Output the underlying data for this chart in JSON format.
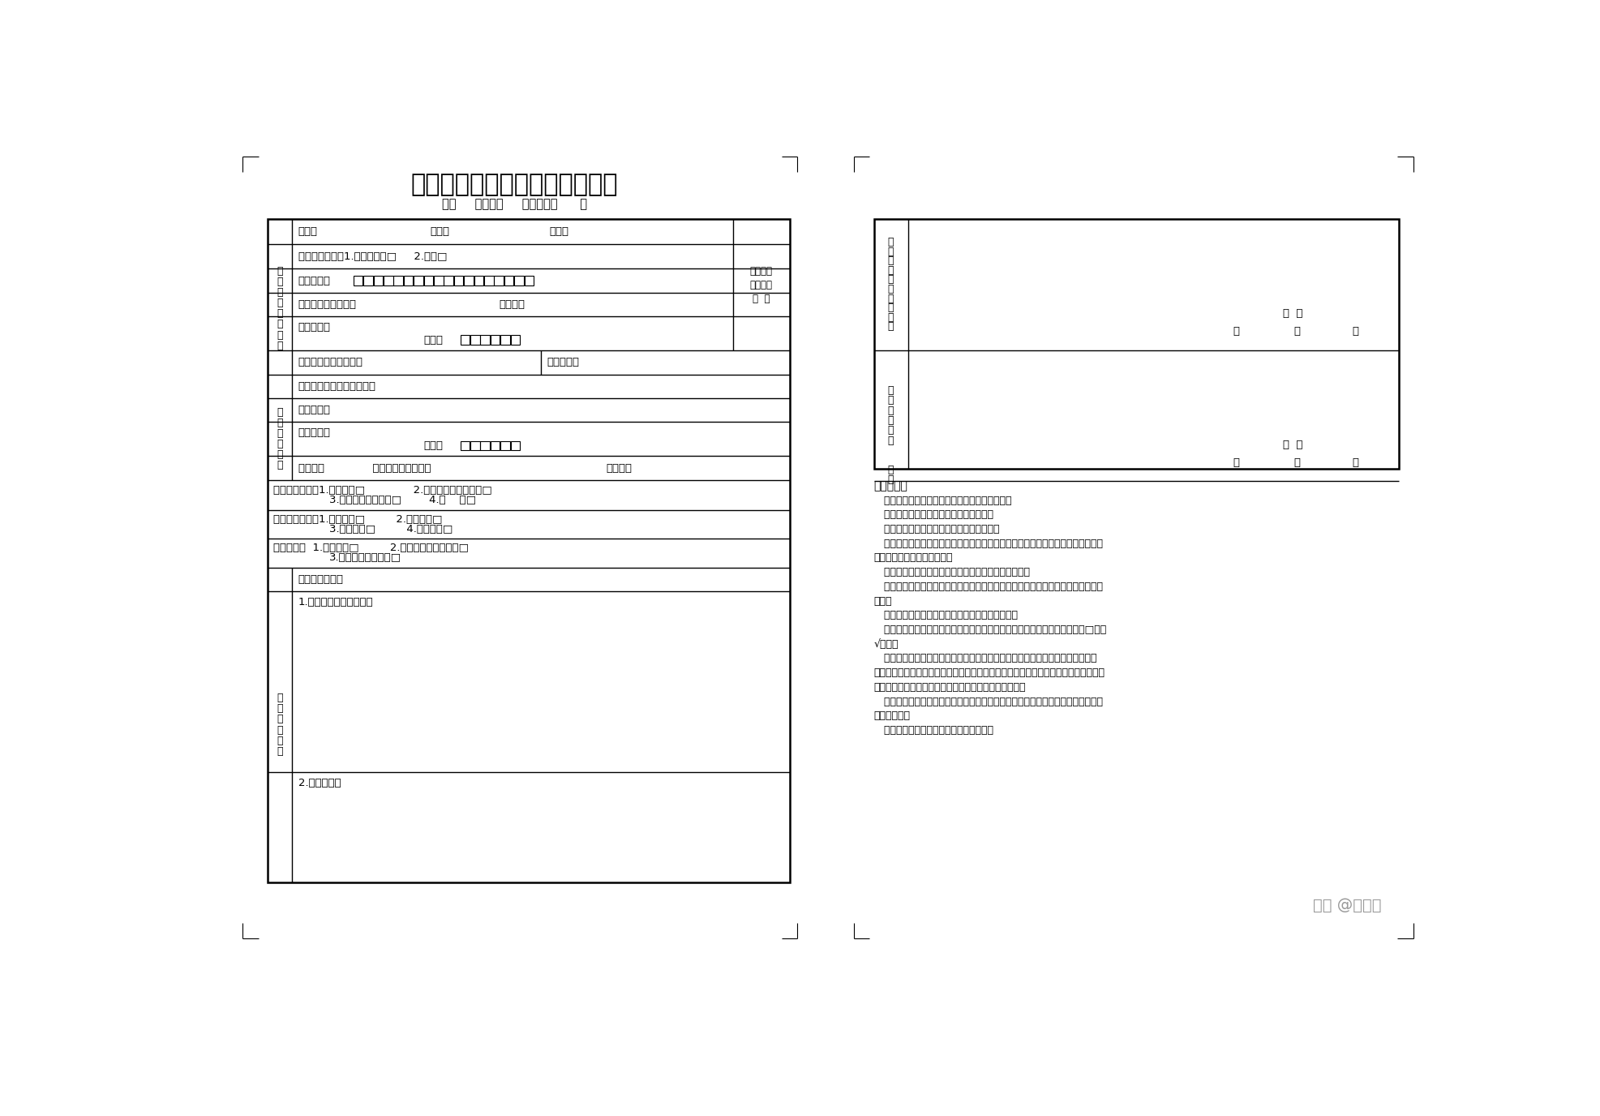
{
  "title": "北京市工伤劳动能力鉴定申请表",
  "subtitle": "市（     区县）（     年）劳鉴第      号",
  "bg_color": "#ffffff",
  "text_color": "#000000",
  "notes": [
    "注意事项：",
    "   一、申请工伤劳动能力鉴定，应提交以下材料：",
    "   （一）北京市工伤劳动能力鉴定申请表；",
    "   （二）《认定工伤决定书》原件和复印件；",
    "   （三）有效的医疗诊断证明，按照医疗机构病历管理有关规定复印或复制的检查、",
    "检验报告等完整的病历材料；",
    "   （四）居民身份证或其他有效身份证明原件和复印件；",
    "   （五）申请再次鉴定的，还需提交劳动能力初次（或者复查）鉴定结论的原件和复",
    "印件；",
    "   （六）劳动能力鉴定委员会要求提供的其他材料。",
    "   二、身份证件类型、申请鉴定原因、申请鉴定类型、申请主体等栏目，请在□内打",
    "√选择。",
    "   三、申请鉴定人本人意见一栏，应说明是否同意申请劳动能力鉴定，表中所填内",
    "容是否真实，并由本人签字。本人因身体原因不能签字由其近亲属代为签名的，应写明",
    "签名人与申请鉴定人本人的亲属关系，并提供关系证明。",
    "   四、用人单位意见栏应写明是否同意劳动能力鉴定，表中所填内容是否真实，并加",
    "盖单位公章。",
    "   五、填表请用钢笔或签字笔，字迹工整。"
  ],
  "watermark": "知乎 @杨律师"
}
